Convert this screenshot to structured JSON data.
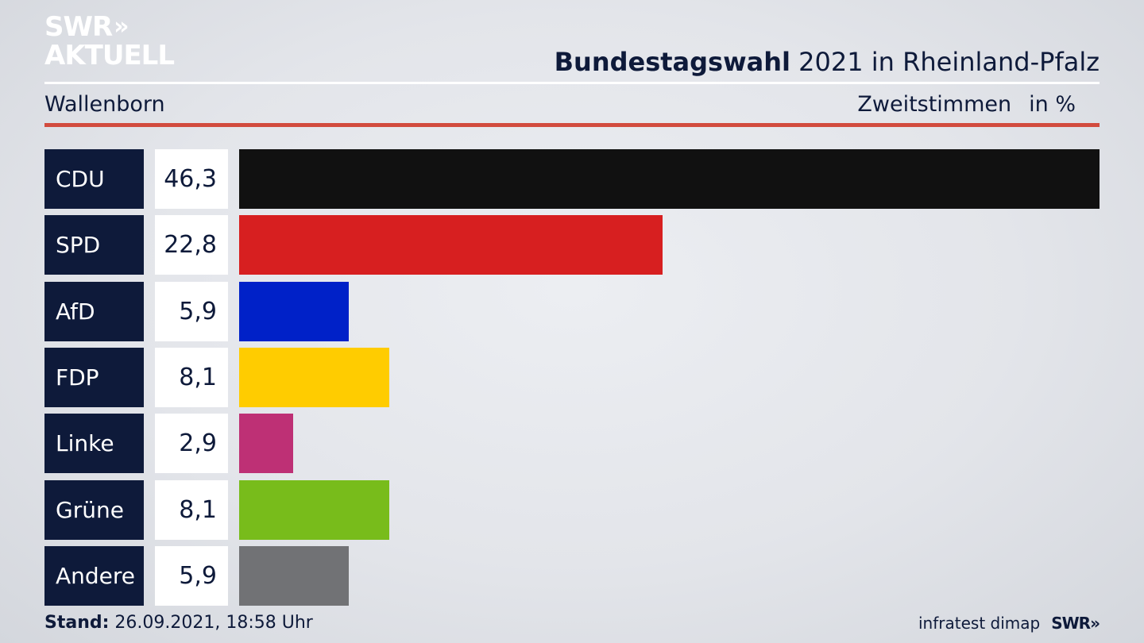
{
  "logo": {
    "line1": "SWR",
    "chevrons": "»",
    "line2": "AKTUELL"
  },
  "header": {
    "title_strong": "Bundestagswahl",
    "title_rest": " 2021 in Rheinland-Pfalz",
    "region": "Wallenborn",
    "measure": "Zweitstimmen",
    "unit": "in %"
  },
  "footer": {
    "stand_label": "Stand:",
    "stand_value": " 26.09.2021, 18:58 Uhr",
    "source": "infratest dimap",
    "brand": "SWR»"
  },
  "colors": {
    "accent": "#d24b3e",
    "label_bg": "#0e1a3a",
    "CDU": "#111111",
    "SPD": "#d71f20",
    "AfD": "#0021c8",
    "FDP": "#ffcc00",
    "Linke": "#be3075",
    "Grüne": "#78bc1b",
    "Andere": "#717275"
  },
  "chart_data": {
    "type": "bar",
    "orientation": "horizontal",
    "categories": [
      "CDU",
      "SPD",
      "AfD",
      "FDP",
      "Linke",
      "Grüne",
      "Andere"
    ],
    "values": [
      46.3,
      22.8,
      5.9,
      8.1,
      2.9,
      8.1,
      5.9
    ],
    "value_labels": [
      "46,3",
      "22,8",
      "5,9",
      "8,1",
      "2,9",
      "8,1",
      "5,9"
    ],
    "title": "Bundestagswahl 2021 in Rheinland-Pfalz",
    "xlabel": "",
    "ylabel": "",
    "xlim": [
      0,
      46.3
    ],
    "grid": false
  }
}
